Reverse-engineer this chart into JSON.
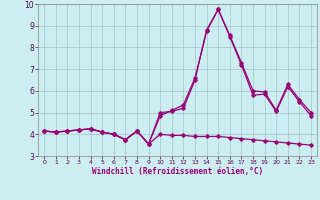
{
  "xlabel": "Windchill (Refroidissement éolien,°C)",
  "bg_color": "#cceef0",
  "line_color": "#990077",
  "grid_color": "#aacccc",
  "xlim": [
    -0.5,
    23.5
  ],
  "ylim": [
    3,
    10
  ],
  "yticks": [
    3,
    4,
    5,
    6,
    7,
    8,
    9,
    10
  ],
  "xticks": [
    0,
    1,
    2,
    3,
    4,
    5,
    6,
    7,
    8,
    9,
    10,
    11,
    12,
    13,
    14,
    15,
    16,
    17,
    18,
    19,
    20,
    21,
    22,
    23
  ],
  "line1_x": [
    0,
    1,
    2,
    3,
    4,
    5,
    6,
    7,
    8,
    9,
    10,
    11,
    12,
    13,
    14,
    15,
    16,
    17,
    18,
    19,
    20,
    21,
    22,
    23
  ],
  "line1_y": [
    4.15,
    4.1,
    4.15,
    4.2,
    4.25,
    4.1,
    4.0,
    3.75,
    4.15,
    3.55,
    4.0,
    3.95,
    3.95,
    3.9,
    3.9,
    3.9,
    3.85,
    3.8,
    3.75,
    3.7,
    3.65,
    3.6,
    3.55,
    3.5
  ],
  "line2_x": [
    0,
    1,
    2,
    3,
    4,
    5,
    6,
    7,
    8,
    9,
    10,
    11,
    12,
    13,
    14,
    15,
    16,
    17,
    18,
    19,
    20,
    21,
    22,
    23
  ],
  "line2_y": [
    4.15,
    4.1,
    4.15,
    4.2,
    4.25,
    4.1,
    4.0,
    3.75,
    4.15,
    3.55,
    5.0,
    5.05,
    5.2,
    6.5,
    8.8,
    9.75,
    8.5,
    7.2,
    5.8,
    5.85,
    5.05,
    6.2,
    5.5,
    4.85
  ],
  "line3_x": [
    0,
    1,
    2,
    3,
    4,
    5,
    6,
    7,
    8,
    9,
    10,
    11,
    12,
    13,
    14,
    15,
    16,
    17,
    18,
    19,
    20,
    21,
    22,
    23
  ],
  "line3_y": [
    4.15,
    4.1,
    4.15,
    4.2,
    4.25,
    4.1,
    4.0,
    3.75,
    4.15,
    3.55,
    4.85,
    5.1,
    5.35,
    6.6,
    8.75,
    9.75,
    8.55,
    7.3,
    6.0,
    5.95,
    5.1,
    6.3,
    5.6,
    5.0
  ]
}
